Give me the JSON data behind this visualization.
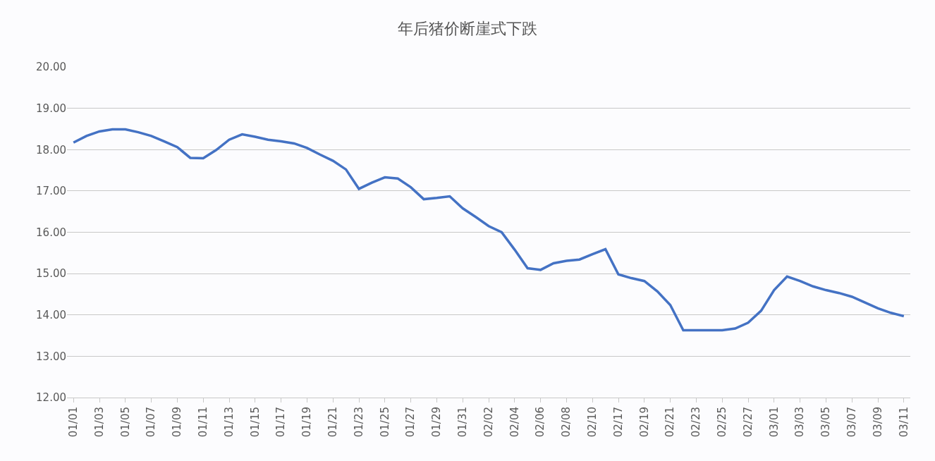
{
  "chart_data": {
    "type": "line",
    "title": "年后猪价断崖式下跌",
    "categories": [
      "01/01",
      null,
      "01/03",
      null,
      "01/05",
      null,
      "01/07",
      null,
      "01/09",
      null,
      "01/11",
      null,
      "01/13",
      null,
      "01/15",
      null,
      "01/17",
      null,
      "01/19",
      null,
      "01/21",
      null,
      "01/23",
      null,
      "01/25",
      null,
      "01/27",
      null,
      "01/29",
      null,
      "01/31",
      null,
      "02/02",
      null,
      "02/04",
      null,
      "02/06",
      null,
      "02/08",
      null,
      "02/10",
      null,
      "02/17",
      null,
      "02/19",
      null,
      "02/21",
      null,
      "02/23",
      null,
      "02/25",
      null,
      "02/27",
      null,
      "03/01",
      null,
      "03/03",
      null,
      "03/05",
      null,
      "03/07",
      null,
      "03/09",
      null,
      "03/11"
    ],
    "series": [
      {
        "color": "#4472c4",
        "values": [
          18.17,
          18.33,
          18.44,
          18.49,
          18.49,
          18.42,
          18.33,
          18.2,
          18.06,
          17.8,
          17.79,
          17.99,
          18.24,
          18.37,
          18.31,
          18.24,
          18.2,
          18.15,
          18.04,
          17.88,
          17.73,
          17.52,
          17.05,
          17.2,
          17.33,
          17.3,
          17.09,
          16.8,
          16.83,
          16.87,
          16.58,
          16.37,
          16.15,
          16.0,
          15.58,
          15.13,
          15.09,
          15.25,
          15.31,
          15.34,
          15.47,
          15.59,
          14.98,
          14.89,
          14.82,
          14.57,
          14.24,
          13.63,
          13.63,
          13.63,
          13.63,
          13.67,
          13.81,
          14.1,
          14.6,
          14.93,
          14.82,
          14.69,
          14.6,
          14.53,
          14.44,
          14.3,
          14.16,
          14.05,
          13.97
        ]
      }
    ],
    "ylim": [
      12,
      20
    ],
    "yticks": [
      {
        "value": 12,
        "label": "12.00"
      },
      {
        "value": 13,
        "label": "13.00"
      },
      {
        "value": 14,
        "label": "14.00"
      },
      {
        "value": 15,
        "label": "15.00"
      },
      {
        "value": 16,
        "label": "16.00"
      },
      {
        "value": 17,
        "label": "17.00"
      },
      {
        "value": 18,
        "label": "18.00"
      },
      {
        "value": 19,
        "label": "19.00"
      },
      {
        "value": 20,
        "label": "20.00"
      }
    ],
    "grid": "y",
    "marker": "none",
    "line_style": "solid"
  }
}
